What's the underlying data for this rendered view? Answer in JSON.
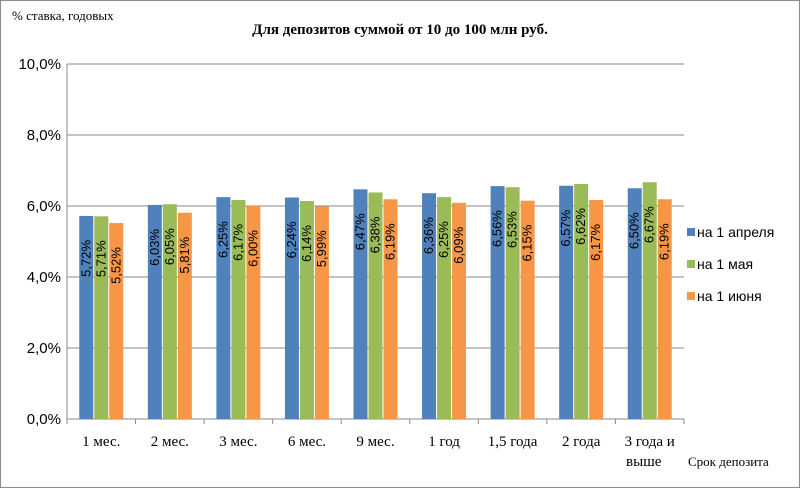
{
  "chart_data": {
    "type": "bar",
    "title": "Для депозитов суммой от 10 до 100 млн руб.",
    "ylabel": "% ставка, годовых",
    "xlabel": "Срок депозита",
    "ylim": [
      0,
      10
    ],
    "yticks": [
      "0,0%",
      "2,0%",
      "4,0%",
      "6,0%",
      "8,0%",
      "10,0%"
    ],
    "grid": true,
    "legend_position": "right",
    "categories": [
      "1 мес.",
      "2 мес.",
      "3 мес.",
      "6 мес.",
      "9 мес.",
      "1 год",
      "1,5 года",
      "2 года",
      "3 года и выше"
    ],
    "series": [
      {
        "name": "на 1 апреля",
        "color": "#4f81bd",
        "values": [
          5.72,
          6.03,
          6.25,
          6.24,
          6.47,
          6.36,
          6.56,
          6.57,
          6.5
        ],
        "labels": [
          "5,72%",
          "6,03%",
          "6,25%",
          "6,24%",
          "6,47%",
          "6,36%",
          "6,56%",
          "6,57%",
          "6,50%"
        ]
      },
      {
        "name": "на 1 мая",
        "color": "#9bbb59",
        "values": [
          5.71,
          6.05,
          6.17,
          6.14,
          6.38,
          6.25,
          6.53,
          6.62,
          6.67
        ],
        "labels": [
          "5,71%",
          "6,05%",
          "6,17%",
          "6,14%",
          "6,38%",
          "6,25%",
          "6,53%",
          "6,62%",
          "6,67%"
        ]
      },
      {
        "name": "на 1 июня",
        "color": "#f79646",
        "values": [
          5.52,
          5.81,
          6.0,
          5.99,
          6.19,
          6.09,
          6.15,
          6.17,
          6.19
        ],
        "labels": [
          "5,52%",
          "5,81%",
          "6,00%",
          "5,99%",
          "6,19%",
          "6,09%",
          "6,15%",
          "6,17%",
          "6,19%"
        ]
      }
    ]
  }
}
